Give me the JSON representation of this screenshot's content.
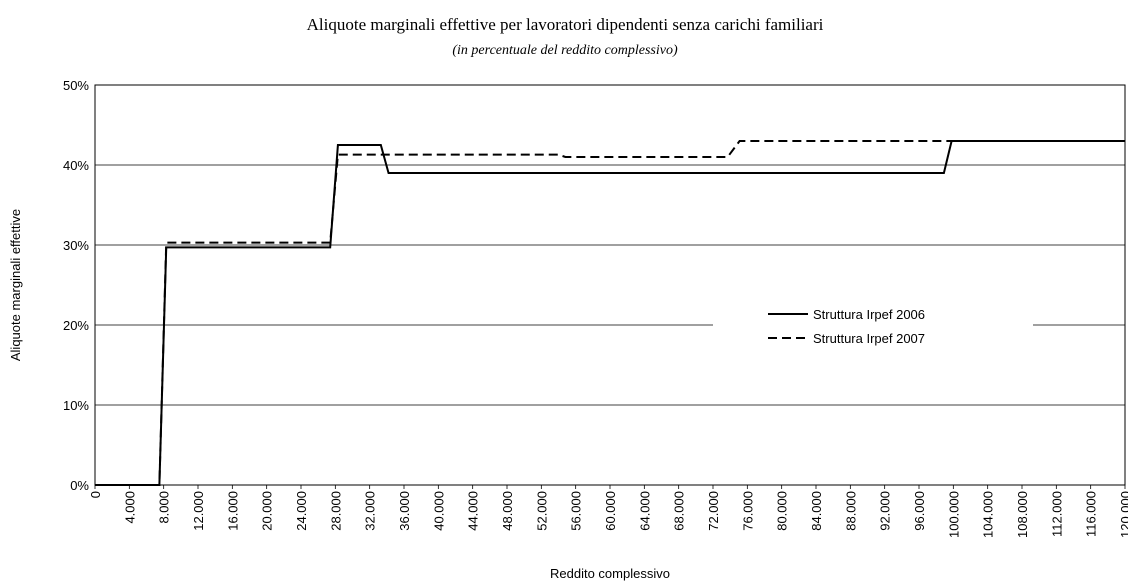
{
  "chart_data": {
    "type": "line",
    "title": "Aliquote marginali effettive per lavoratori dipendenti senza carichi familiari",
    "subtitle": "(in percentuale del reddito complessivo)",
    "x_label": "Reddito complessivo",
    "y_label": "Aliquote marginali effettive",
    "xlim": [
      0,
      120000
    ],
    "ylim": [
      0,
      50
    ],
    "xticks": [
      0,
      {
        "value": 4000,
        "label": "4.000"
      },
      {
        "value": 8000,
        "label": "8.000"
      },
      {
        "value": 12000,
        "label": "12.000"
      },
      {
        "value": 16000,
        "label": "16.000"
      },
      {
        "value": 20000,
        "label": "20.000"
      },
      {
        "value": 24000,
        "label": "24.000"
      },
      {
        "value": 28000,
        "label": "28.000"
      },
      {
        "value": 32000,
        "label": "32.000"
      },
      {
        "value": 36000,
        "label": "36.000"
      },
      {
        "value": 40000,
        "label": "40.000"
      },
      {
        "value": 44000,
        "label": "44.000"
      },
      {
        "value": 48000,
        "label": "48.000"
      },
      {
        "value": 52000,
        "label": "52.000"
      },
      {
        "value": 56000,
        "label": "56.000"
      },
      {
        "value": 60000,
        "label": "60.000"
      },
      {
        "value": 64000,
        "label": "64.000"
      },
      {
        "value": 68000,
        "label": "68.000"
      },
      {
        "value": 72000,
        "label": "72.000"
      },
      {
        "value": 76000,
        "label": "76.000"
      },
      {
        "value": 80000,
        "label": "80.000"
      },
      {
        "value": 84000,
        "label": "84.000"
      },
      {
        "value": 88000,
        "label": "88.000"
      },
      {
        "value": 92000,
        "label": "92.000"
      },
      {
        "value": 96000,
        "label": "96.000"
      },
      {
        "value": 100000,
        "label": "100.000"
      },
      {
        "value": 104000,
        "label": "104.000"
      },
      {
        "value": 108000,
        "label": "108.000"
      },
      {
        "value": 112000,
        "label": "112.000"
      },
      {
        "value": 116000,
        "label": "116.000"
      },
      {
        "value": 120000,
        "label": "120.000"
      }
    ],
    "yticks": [
      {
        "value": 0,
        "label": "0%"
      },
      {
        "value": 10,
        "label": "10%"
      },
      {
        "value": 20,
        "label": "20%"
      },
      {
        "value": 30,
        "label": "30%"
      },
      {
        "value": 40,
        "label": "40%"
      },
      {
        "value": 50,
        "label": "50%"
      }
    ],
    "grid": true,
    "legend": "right",
    "series": [
      {
        "name": "Struttura Irpef 2006",
        "color": "#000000",
        "dash": "solid",
        "x": [
          0,
          7500,
          8300,
          27400,
          28300,
          33300,
          34200,
          98900,
          99800,
          120000
        ],
        "values": [
          0,
          0,
          29.7,
          29.7,
          42.5,
          42.5,
          39,
          39,
          43,
          43
        ]
      },
      {
        "name": "Struttura Irpef 2007",
        "color": "#000000",
        "dash": "dashed",
        "x": [
          0,
          7500,
          8300,
          27400,
          28300,
          54000,
          54800,
          73700,
          75100,
          120000
        ],
        "values": [
          0,
          0,
          30.3,
          30.3,
          41.3,
          41.3,
          41,
          41,
          43,
          43
        ]
      }
    ]
  }
}
